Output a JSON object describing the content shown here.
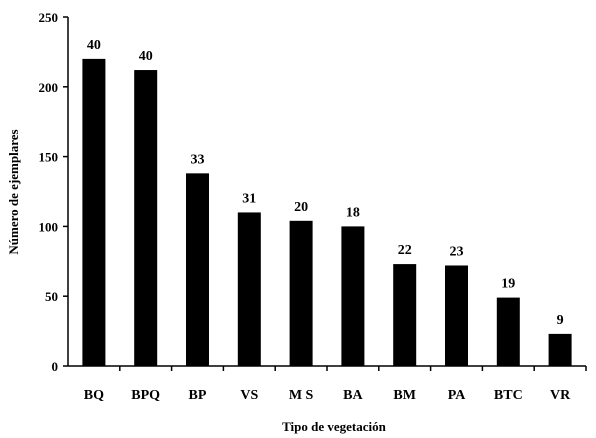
{
  "chart_data": {
    "type": "bar",
    "categories": [
      "BQ",
      "BPQ",
      "BP",
      "VS",
      "M S",
      "BA",
      "BM",
      "PA",
      "BTC",
      "VR"
    ],
    "values": [
      220,
      212,
      138,
      110,
      104,
      100,
      73,
      72,
      49,
      23
    ],
    "data_labels": [
      "40",
      "40",
      "33",
      "31",
      "20",
      "18",
      "22",
      "23",
      "19",
      "9"
    ],
    "title": "",
    "xlabel": "Tipo de vegetación",
    "ylabel": "Número de ejemplares",
    "ylim": [
      0,
      250
    ],
    "yticks": [
      "0",
      "50",
      "100",
      "150",
      "200",
      "250"
    ],
    "ytick_values": [
      0,
      50,
      100,
      150,
      200,
      250
    ],
    "grid": false,
    "legend": "none",
    "bar_color": "#000000"
  }
}
